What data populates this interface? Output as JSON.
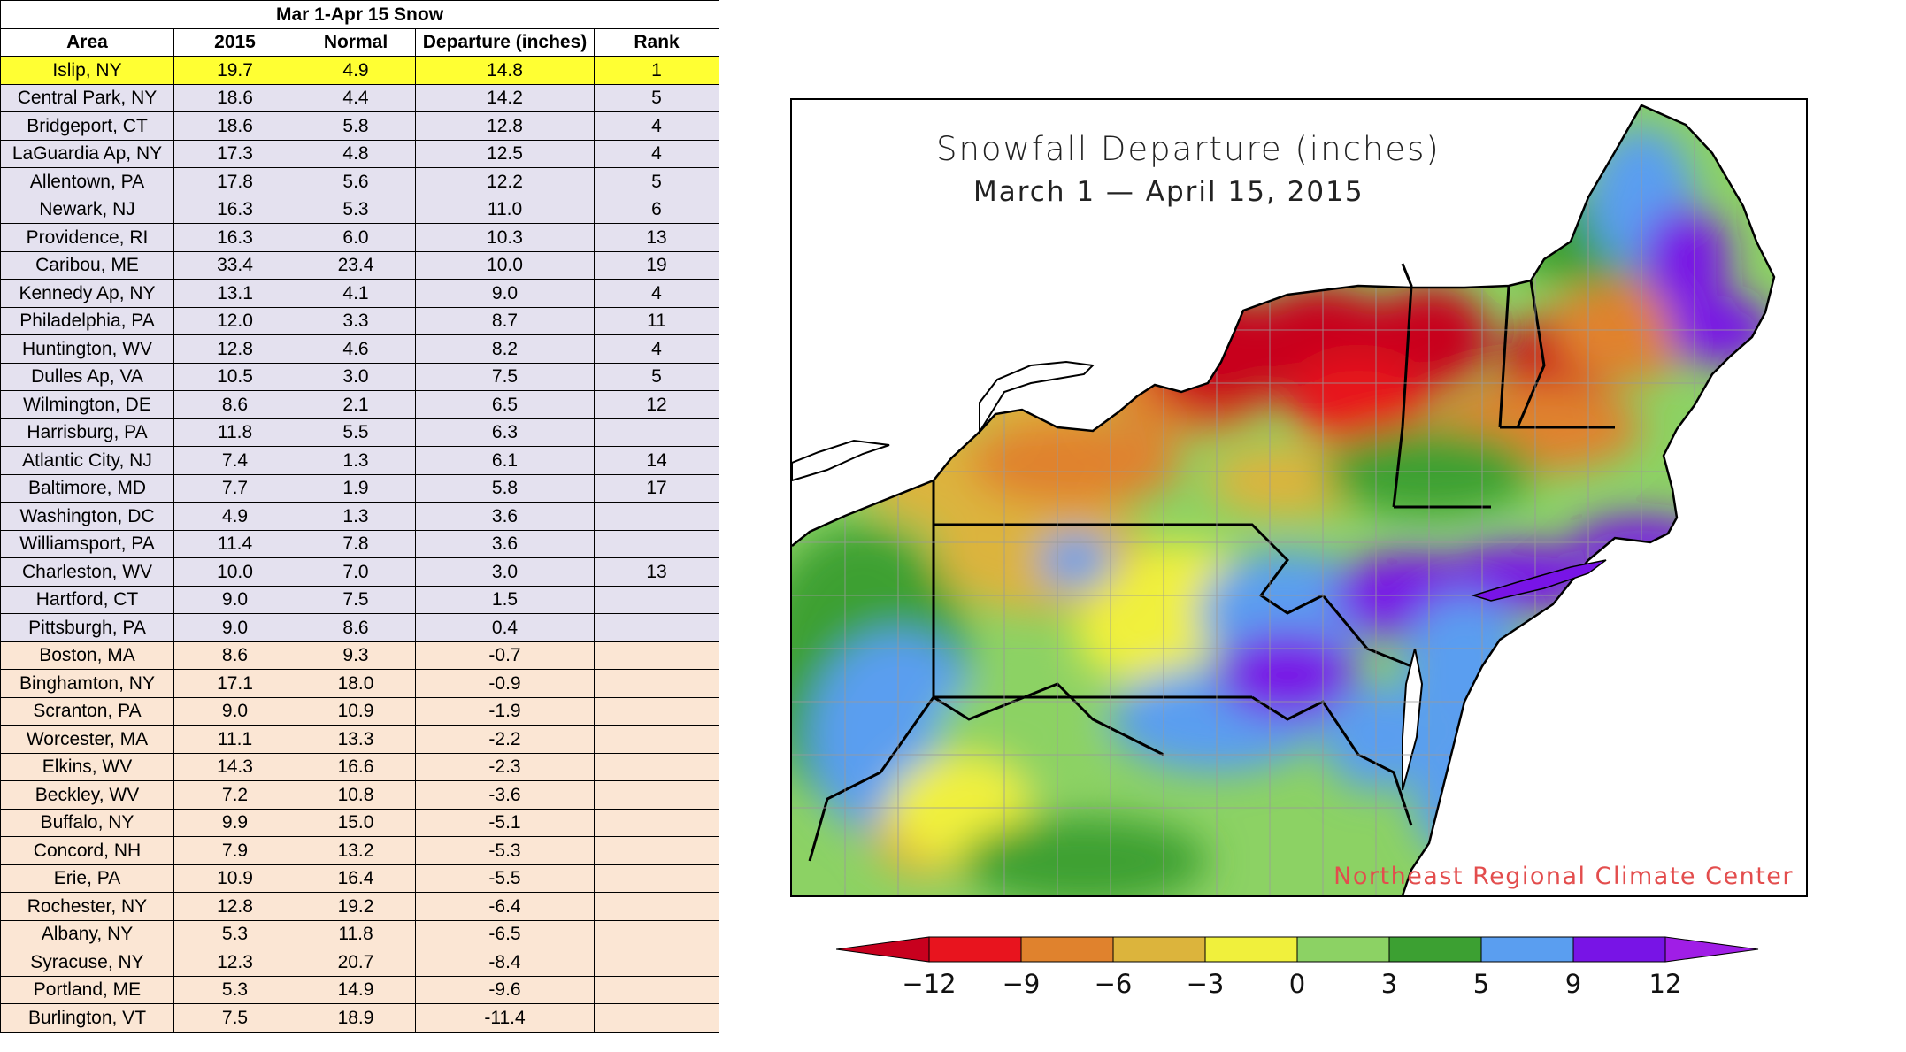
{
  "table": {
    "title": "Mar 1-Apr 15 Snow",
    "headers": [
      "Area",
      "2015",
      "Normal",
      "Departure (inches)",
      "Rank"
    ],
    "rows": [
      [
        "Islip, NY",
        "19.7",
        "4.9",
        "14.8",
        "1"
      ],
      [
        "Central Park, NY",
        "18.6",
        "4.4",
        "14.2",
        "5"
      ],
      [
        "Bridgeport, CT",
        "18.6",
        "5.8",
        "12.8",
        "4"
      ],
      [
        "LaGuardia Ap, NY",
        "17.3",
        "4.8",
        "12.5",
        "4"
      ],
      [
        "Allentown, PA",
        "17.8",
        "5.6",
        "12.2",
        "5"
      ],
      [
        "Newark, NJ",
        "16.3",
        "5.3",
        "11.0",
        "6"
      ],
      [
        "Providence, RI",
        "16.3",
        "6.0",
        "10.3",
        "13"
      ],
      [
        "Caribou, ME",
        "33.4",
        "23.4",
        "10.0",
        "19"
      ],
      [
        "Kennedy Ap, NY",
        "13.1",
        "4.1",
        "9.0",
        "4"
      ],
      [
        "Philadelphia, PA",
        "12.0",
        "3.3",
        "8.7",
        "11"
      ],
      [
        "Huntington, WV",
        "12.8",
        "4.6",
        "8.2",
        "4"
      ],
      [
        "Dulles Ap, VA",
        "10.5",
        "3.0",
        "7.5",
        "5"
      ],
      [
        "Wilmington, DE",
        "8.6",
        "2.1",
        "6.5",
        "12"
      ],
      [
        "Harrisburg, PA",
        "11.8",
        "5.5",
        "6.3",
        ""
      ],
      [
        "Atlantic City, NJ",
        "7.4",
        "1.3",
        "6.1",
        "14"
      ],
      [
        "Baltimore, MD",
        "7.7",
        "1.9",
        "5.8",
        "17"
      ],
      [
        "Washington, DC",
        "4.9",
        "1.3",
        "3.6",
        ""
      ],
      [
        "Williamsport, PA",
        "11.4",
        "7.8",
        "3.6",
        ""
      ],
      [
        "Charleston, WV",
        "10.0",
        "7.0",
        "3.0",
        "13"
      ],
      [
        "Hartford, CT",
        "9.0",
        "7.5",
        "1.5",
        ""
      ],
      [
        "Pittsburgh, PA",
        "9.0",
        "8.6",
        "0.4",
        ""
      ],
      [
        "Boston, MA",
        "8.6",
        "9.3",
        "-0.7",
        ""
      ],
      [
        "Binghamton, NY",
        "17.1",
        "18.0",
        "-0.9",
        ""
      ],
      [
        "Scranton, PA",
        "9.0",
        "10.9",
        "-1.9",
        ""
      ],
      [
        "Worcester, MA",
        "11.1",
        "13.3",
        "-2.2",
        ""
      ],
      [
        "Elkins, WV",
        "14.3",
        "16.6",
        "-2.3",
        ""
      ],
      [
        "Beckley, WV",
        "7.2",
        "10.8",
        "-3.6",
        ""
      ],
      [
        "Buffalo, NY",
        "9.9",
        "15.0",
        "-5.1",
        ""
      ],
      [
        "Concord, NH",
        "7.9",
        "13.2",
        "-5.3",
        ""
      ],
      [
        "Erie, PA",
        "10.9",
        "16.4",
        "-5.5",
        ""
      ],
      [
        "Rochester, NY",
        "12.8",
        "19.2",
        "-6.4",
        ""
      ],
      [
        "Albany, NY",
        "5.3",
        "11.8",
        "-6.5",
        ""
      ],
      [
        "Syracuse, NY",
        "12.3",
        "20.7",
        "-8.4",
        ""
      ],
      [
        "Portland, ME",
        "5.3",
        "14.9",
        "-9.6",
        ""
      ],
      [
        "Burlington, VT",
        "7.5",
        "18.9",
        "-11.4",
        ""
      ]
    ]
  },
  "map": {
    "title_line1": "Snowfall Departure (inches)",
    "title_line2": "March 1 — April 15, 2015",
    "credit": "Northeast Regional Climate Center"
  },
  "legend": {
    "labels": [
      "−12",
      "−9",
      "−6",
      "−3",
      "0",
      "3",
      "5",
      "9",
      "12"
    ],
    "colors": [
      "#c8001e",
      "#e8141e",
      "#e0822d",
      "#dcb43c",
      "#f0f03c",
      "#8cd264",
      "#3ca032",
      "#5a9ef0",
      "#7814e6",
      "#a01ee6"
    ]
  }
}
